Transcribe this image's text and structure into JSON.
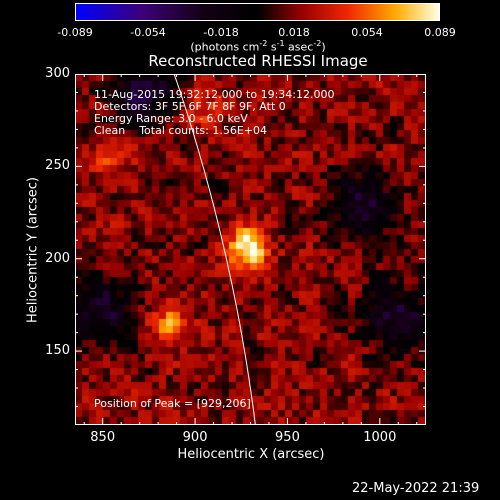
{
  "colorbar": {
    "ticks": [
      "-0.089",
      "-0.054",
      "-0.018",
      "0.018",
      "0.054",
      "0.089"
    ],
    "units_text": "(photons cm",
    "units_exp1": "-2",
    "units_mid": " s",
    "units_exp2": "-1",
    "units_mid2": " asec",
    "units_exp3": "-2",
    "units_end": ")"
  },
  "title": "Reconstructed RHESSI Image",
  "info": {
    "line1": "11-Aug-2015 19:32:12.000 to 19:34:12.000",
    "line2": "Detectors: 3F 5F 6F 7F 8F 9F, Att 0",
    "line3": "Energy Range: 3.0 - 6.0 keV",
    "line4": "Clean    Total counts: 1.56E+04",
    "peak": "Position of Peak = [929,206]"
  },
  "chart_data": {
    "type": "heatmap",
    "title": "Reconstructed RHESSI Image",
    "xlabel": "Heliocentric X (arcsec)",
    "ylabel": "Heliocentric Y (arcsec)",
    "xlim": [
      835,
      1025
    ],
    "ylim": [
      110,
      300
    ],
    "x_ticks": [
      "850",
      "900",
      "950",
      "1000"
    ],
    "y_ticks": [
      "300",
      "250",
      "200",
      "150"
    ],
    "x_tick_values": [
      850,
      900,
      950,
      1000
    ],
    "y_tick_values": [
      300,
      250,
      200,
      150
    ],
    "colorbar_range": [
      -0.089,
      0.089
    ],
    "peak": [
      929,
      206
    ],
    "sources": [
      {
        "x": 929,
        "y": 206,
        "amp": 1.0
      },
      {
        "x": 887,
        "y": 164,
        "amp": 0.55
      },
      {
        "x": 855,
        "y": 255,
        "amp": 0.35
      },
      {
        "x": 905,
        "y": 280,
        "amp": 0.3
      }
    ],
    "negative_regions": [
      {
        "x": 990,
        "y": 228
      },
      {
        "x": 1010,
        "y": 168
      },
      {
        "x": 872,
        "y": 290
      },
      {
        "x": 850,
        "y": 172
      }
    ]
  },
  "footer": "22-May-2022 21:39"
}
